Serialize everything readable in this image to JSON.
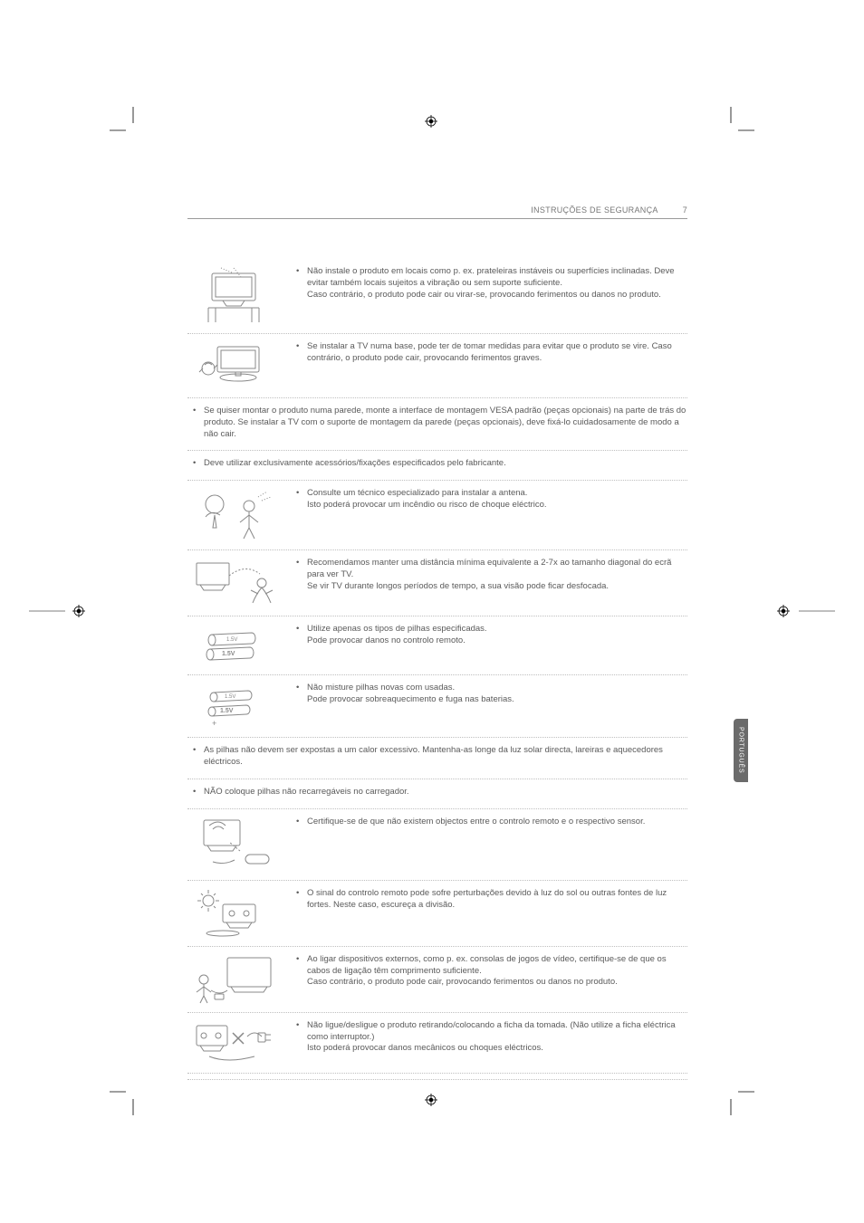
{
  "header": {
    "section": "INSTRUÇÕES DE SEGURANÇA",
    "page": "7"
  },
  "sideTab": "PORTUGUÊS",
  "rows": [
    {
      "img": "tv-shelf",
      "items": [
        "Não instale o produto em locais como p. ex. prateleiras instáveis ou superfícies inclinadas. Deve evitar também locais sujeitos a vibração ou sem suporte suficiente.\nCaso contrário, o produto pode cair ou virar-se, provocando ferimentos ou danos no produto."
      ]
    },
    {
      "img": "tv-stand",
      "items": [
        "Se instalar a TV numa base, pode ter de tomar medidas para evitar que o produto se vire. Caso contrário, o produto pode cair, provocando ferimentos graves."
      ]
    },
    {
      "noimg": true,
      "items": [
        "Se quiser montar o produto numa parede, monte a interface de montagem VESA padrão (peças opcionais) na parte de trás do produto. Se instalar a TV com o suporte de montagem da parede (peças opcionais), deve fixá-lo cuidadosamente de modo a não cair."
      ]
    },
    {
      "noimg": true,
      "items": [
        "Deve utilizar exclusivamente acessórios/fixações especificados pelo fabricante."
      ]
    },
    {
      "img": "antenna-person",
      "items": [
        "Consulte um técnico especializado para instalar a antena.\nIsto poderá provocar um incêndio ou risco de choque eléctrico."
      ]
    },
    {
      "img": "tv-distance",
      "items": [
        "Recomendamos manter uma distância mínima equivalente a 2-7x ao tamanho diagonal do ecrã para ver TV.\nSe vir TV durante longos períodos de tempo, a sua visão pode ficar desfocada."
      ]
    },
    {
      "img": "batteries",
      "items": [
        "Utilize apenas os tipos de pilhas especificadas.\nPode provocar danos no controlo remoto."
      ]
    },
    {
      "img": "batteries-mix",
      "items": [
        "Não misture pilhas novas com usadas.\nPode provocar sobreaquecimento e fuga nas baterias."
      ]
    },
    {
      "noimg": true,
      "items": [
        "As pilhas não devem ser expostas a um calor excessivo. Mantenha-as longe da luz solar directa, lareiras e aquecedores eléctricos."
      ]
    },
    {
      "noimg": true,
      "items": [
        "NÃO coloque pilhas não recarregáveis no carregador."
      ]
    },
    {
      "img": "remote-sensor",
      "items": [
        "Certifique-se de que não existem objectos entre o controlo remoto e o respectivo sensor."
      ]
    },
    {
      "img": "sunlight",
      "items": [
        "O sinal do controlo remoto pode sofre perturbações devido à luz do sol ou outras fontes de luz fortes. Neste caso, escureça a divisão."
      ]
    },
    {
      "img": "console",
      "items": [
        "Ao ligar dispositivos externos, como p. ex. consolas de jogos de vídeo, certifique-se de que os cabos de ligação têm comprimento suficiente.\nCaso contrário, o produto pode cair, provocando ferimentos ou danos no produto."
      ]
    },
    {
      "img": "plug",
      "items": [
        "Não ligue/desligue o produto retirando/colocando a ficha da tomada. (Não utilize a ficha eléctrica como interruptor.)\nIsto poderá provocar danos mecânicos ou choques eléctricos."
      ]
    }
  ],
  "colors": {
    "text": "#5a5a5a",
    "dotted": "#bfbfbf",
    "tab_bg": "#6b6b6b",
    "tab_text": "#ffffff",
    "line_art": "#888888"
  }
}
